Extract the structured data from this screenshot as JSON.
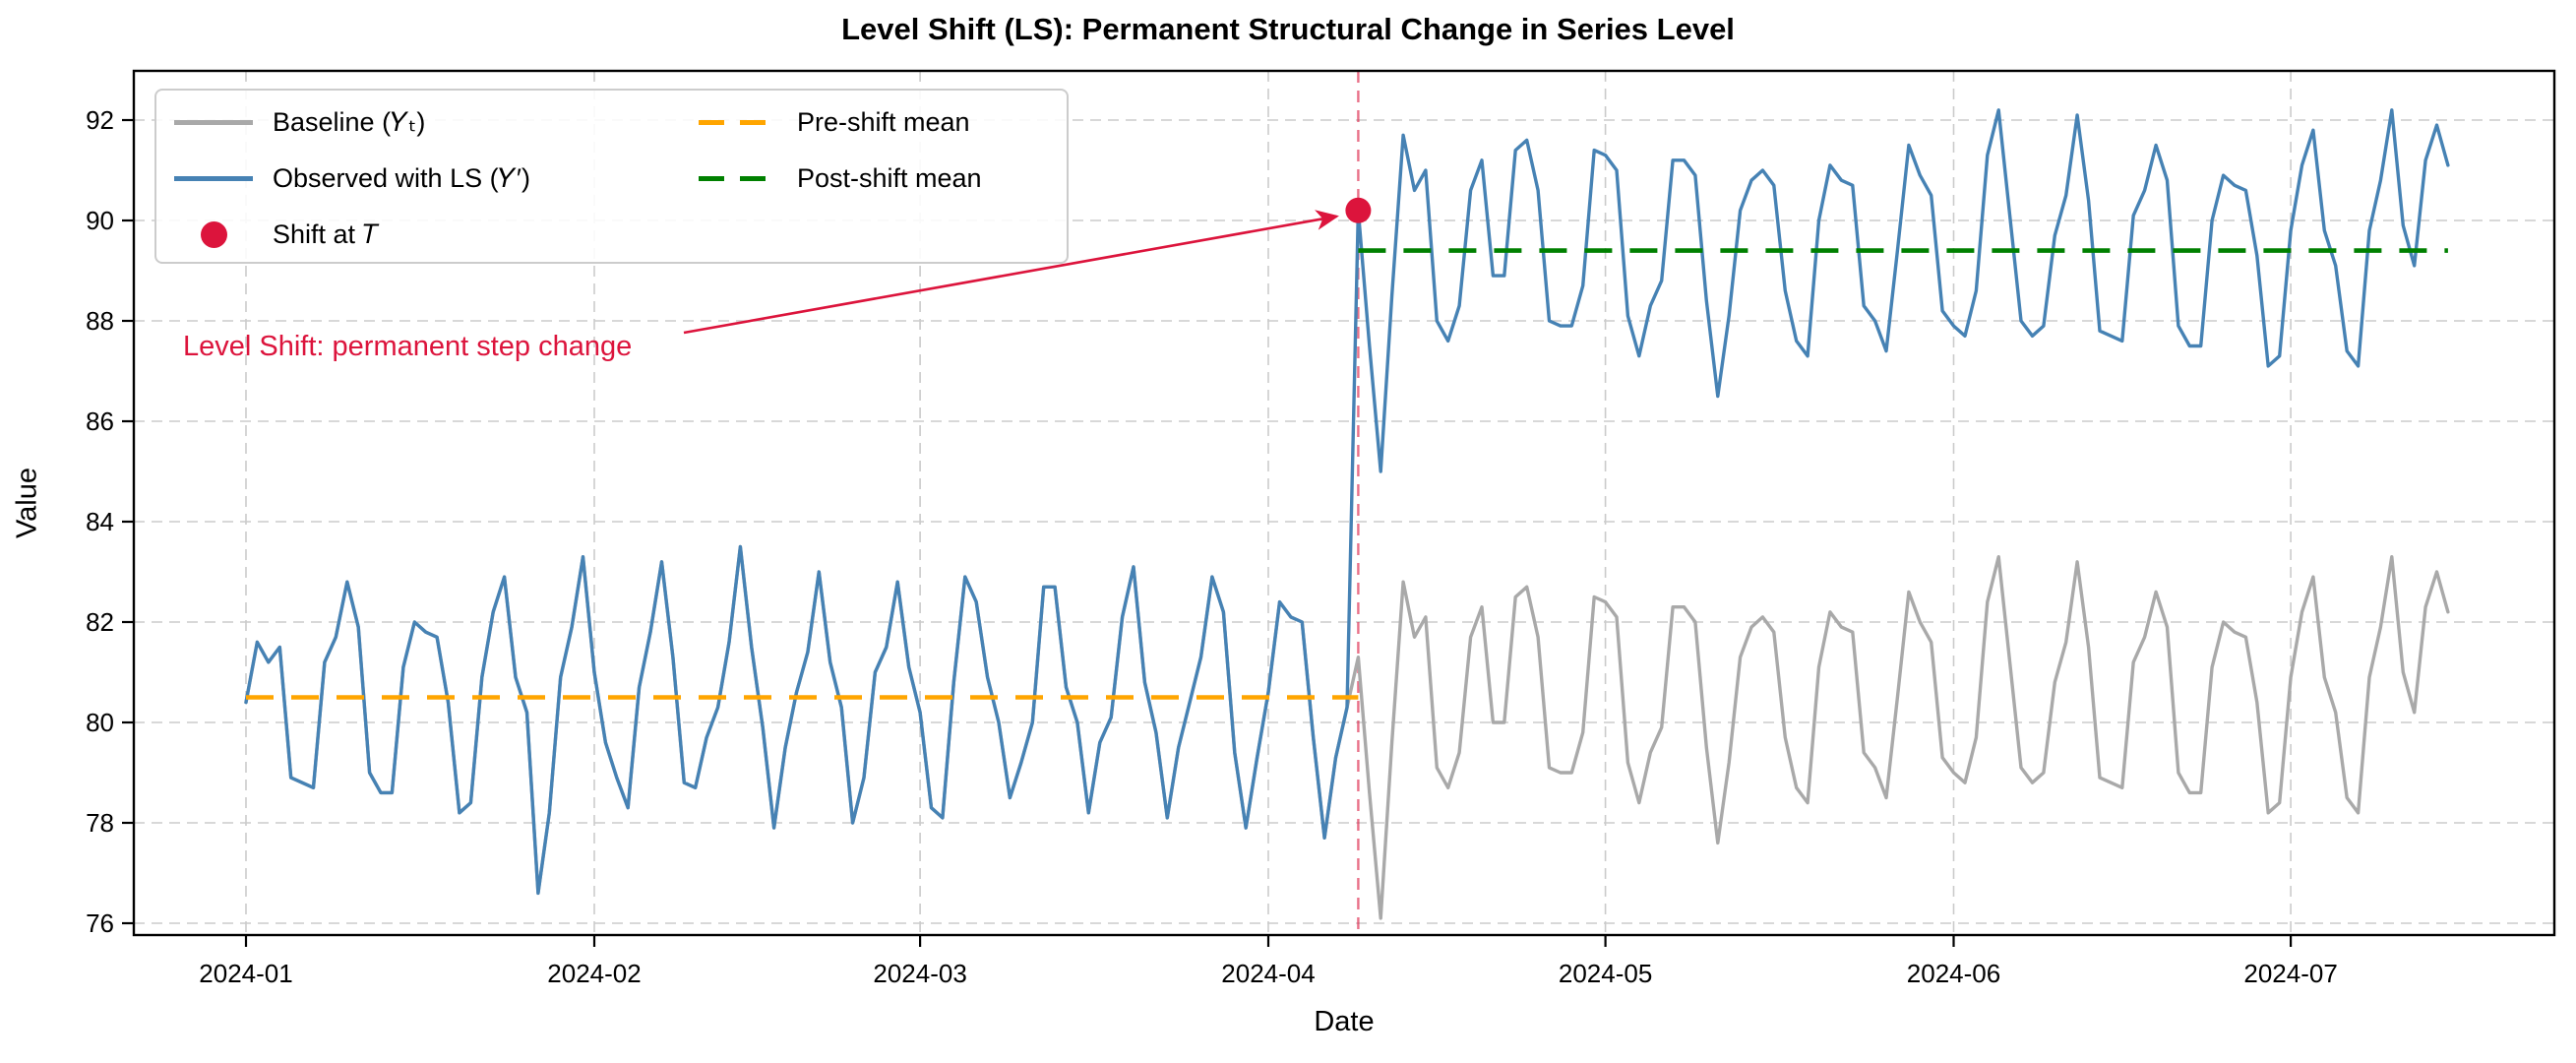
{
  "figure": {
    "title": "Level Shift (LS): Permanent Structural Change in Series Level",
    "xlabel": "Date",
    "ylabel": "Value"
  },
  "annotation": {
    "text": "Level Shift: permanent step change",
    "color": "#DC143C"
  },
  "legend": {
    "position": "upper left",
    "entries": [
      {
        "label": "Baseline (𝑌ₜ)",
        "color": "#A9A9A9",
        "swatch": "line"
      },
      {
        "label": "Observed with LS (𝑌′)",
        "color": "#4682B4",
        "swatch": "line"
      },
      {
        "label": "Shift at 𝑇",
        "color": "#DC143C",
        "swatch": "marker"
      },
      {
        "label": "Pre-shift mean",
        "color": "#FFA500",
        "swatch": "dashed"
      },
      {
        "label": "Post-shift mean",
        "color": "#008000",
        "swatch": "dashed"
      }
    ]
  },
  "colors": {
    "baseline": "#A9A9A9",
    "observed": "#4682B4",
    "pre_shift_mean": "#FFA500",
    "post_shift_mean": "#008000",
    "shift_accent": "#DC143C",
    "grid": "#CBCBCB"
  },
  "chart_data": {
    "type": "line",
    "title": "Level Shift (LS): Permanent Structural Change in Series Level",
    "xlabel": "Date",
    "ylabel": "Value",
    "x_start_date": "2024-01-01",
    "x_end_date": "2024-07-15",
    "frequency": "daily",
    "n_points": 197,
    "grid": true,
    "legend_position": "upper left",
    "x_ticks": [
      {
        "label": "2024-01",
        "day": 0
      },
      {
        "label": "2024-02",
        "day": 31
      },
      {
        "label": "2024-03",
        "day": 60
      },
      {
        "label": "2024-04",
        "day": 91
      },
      {
        "label": "2024-05",
        "day": 121
      },
      {
        "label": "2024-06",
        "day": 152
      },
      {
        "label": "2024-07",
        "day": 182
      }
    ],
    "y_ticks": [
      76,
      78,
      80,
      82,
      84,
      86,
      88,
      90,
      92
    ],
    "ylim": [
      75.8,
      93.0
    ],
    "shift": {
      "day_index": 99,
      "date": "2024-04-09",
      "magnitude": 8.9,
      "observed_value_at_shift": 90.2
    },
    "pre_shift_mean": 80.5,
    "post_shift_mean": 89.4,
    "series": [
      {
        "name": "Baseline (Yt)",
        "color": "#A9A9A9",
        "style": "solid",
        "values": [
          80.4,
          81.6,
          81.2,
          81.5,
          78.9,
          78.8,
          78.7,
          81.2,
          81.7,
          82.8,
          81.9,
          79.0,
          78.6,
          78.6,
          81.1,
          82.0,
          81.8,
          81.7,
          80.4,
          78.2,
          78.4,
          80.9,
          82.2,
          82.9,
          80.9,
          80.2,
          76.6,
          78.2,
          80.9,
          81.9,
          83.3,
          81.0,
          79.6,
          78.9,
          78.3,
          80.7,
          81.8,
          83.2,
          81.3,
          78.8,
          78.7,
          79.7,
          80.3,
          81.6,
          83.5,
          81.5,
          79.9,
          77.9,
          79.5,
          80.6,
          81.4,
          83.0,
          81.2,
          80.3,
          78.0,
          78.9,
          81.0,
          81.5,
          82.8,
          81.1,
          80.2,
          78.3,
          78.1,
          80.8,
          82.9,
          82.4,
          80.9,
          80.0,
          78.5,
          79.2,
          80.0,
          82.7,
          82.7,
          80.7,
          80.0,
          78.2,
          79.6,
          80.1,
          82.1,
          83.1,
          80.8,
          79.8,
          78.1,
          79.5,
          80.4,
          81.3,
          82.9,
          82.2,
          79.4,
          77.9,
          79.3,
          80.6,
          82.4,
          82.1,
          82.0,
          79.7,
          77.7,
          79.3,
          80.3,
          81.3,
          78.6,
          76.1,
          79.6,
          82.8,
          81.7,
          82.1,
          79.1,
          78.7,
          79.4,
          81.7,
          82.3,
          80.0,
          80.0,
          82.5,
          82.7,
          81.7,
          79.1,
          79.0,
          79.0,
          79.8,
          82.5,
          82.4,
          82.1,
          79.2,
          78.4,
          79.4,
          79.9,
          82.3,
          82.3,
          82.0,
          79.5,
          77.6,
          79.2,
          81.3,
          81.9,
          82.1,
          81.8,
          79.7,
          78.7,
          78.4,
          81.1,
          82.2,
          81.9,
          81.8,
          79.4,
          79.1,
          78.5,
          80.5,
          82.6,
          82.0,
          81.6,
          79.3,
          79.0,
          78.8,
          79.7,
          82.4,
          83.3,
          81.2,
          79.1,
          78.8,
          79.0,
          80.8,
          81.6,
          83.2,
          81.5,
          78.9,
          78.8,
          78.7,
          81.2,
          81.7,
          82.6,
          81.9,
          79.0,
          78.6,
          78.6,
          81.1,
          82.0,
          81.8,
          81.7,
          80.4,
          78.2,
          78.4,
          80.9,
          82.2,
          82.9,
          80.9,
          80.2,
          78.5,
          78.2,
          80.9,
          81.9,
          83.3,
          81.0,
          80.2,
          82.3,
          83.0,
          82.2
        ]
      },
      {
        "name": "Observed with LS (Y')",
        "color": "#4682B4",
        "style": "solid",
        "values": [
          80.4,
          81.6,
          81.2,
          81.5,
          78.9,
          78.8,
          78.7,
          81.2,
          81.7,
          82.8,
          81.9,
          79.0,
          78.6,
          78.6,
          81.1,
          82.0,
          81.8,
          81.7,
          80.4,
          78.2,
          78.4,
          80.9,
          82.2,
          82.9,
          80.9,
          80.2,
          76.6,
          78.2,
          80.9,
          81.9,
          83.3,
          81.0,
          79.6,
          78.9,
          78.3,
          80.7,
          81.8,
          83.2,
          81.3,
          78.8,
          78.7,
          79.7,
          80.3,
          81.6,
          83.5,
          81.5,
          79.9,
          77.9,
          79.5,
          80.6,
          81.4,
          83.0,
          81.2,
          80.3,
          78.0,
          78.9,
          81.0,
          81.5,
          82.8,
          81.1,
          80.2,
          78.3,
          78.1,
          80.8,
          82.9,
          82.4,
          80.9,
          80.0,
          78.5,
          79.2,
          80.0,
          82.7,
          82.7,
          80.7,
          80.0,
          78.2,
          79.6,
          80.1,
          82.1,
          83.1,
          80.8,
          79.8,
          78.1,
          79.5,
          80.4,
          81.3,
          82.9,
          82.2,
          79.4,
          77.9,
          79.3,
          80.6,
          82.4,
          82.1,
          82.0,
          79.7,
          77.7,
          79.3,
          80.3,
          90.2,
          87.5,
          85.0,
          88.5,
          91.7,
          90.6,
          91.0,
          88.0,
          87.6,
          88.3,
          90.6,
          91.2,
          88.9,
          88.9,
          91.4,
          91.6,
          90.6,
          88.0,
          87.9,
          87.9,
          88.7,
          91.4,
          91.3,
          91.0,
          88.1,
          87.3,
          88.3,
          88.8,
          91.2,
          91.2,
          90.9,
          88.4,
          86.5,
          88.1,
          90.2,
          90.8,
          91.0,
          90.7,
          88.6,
          87.6,
          87.3,
          90.0,
          91.1,
          90.8,
          90.7,
          88.3,
          88.0,
          87.4,
          89.4,
          91.5,
          90.9,
          90.5,
          88.2,
          87.9,
          87.7,
          88.6,
          91.3,
          92.2,
          90.1,
          88.0,
          87.7,
          87.9,
          89.7,
          90.5,
          92.1,
          90.4,
          87.8,
          87.7,
          87.6,
          90.1,
          90.6,
          91.5,
          90.8,
          87.9,
          87.5,
          87.5,
          90.0,
          90.9,
          90.7,
          90.6,
          89.3,
          87.1,
          87.3,
          89.8,
          91.1,
          91.8,
          89.8,
          89.1,
          87.4,
          87.1,
          89.8,
          90.8,
          92.2,
          89.9,
          89.1,
          91.2,
          91.9,
          91.1
        ]
      }
    ]
  }
}
